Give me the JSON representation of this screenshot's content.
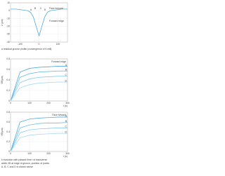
{
  "chart_data": [
    {
      "type": "line",
      "ylabel": "z (µm)",
      "x": [
        -150,
        -120,
        -90,
        -60,
        -45,
        -30,
        -15,
        0,
        15,
        30,
        45,
        60,
        90,
        120,
        150
      ],
      "values": [
        2,
        2,
        1,
        0,
        -2,
        -8,
        -20,
        -32,
        -20,
        -8,
        -2,
        0,
        1,
        2,
        2
      ],
      "color": "#3a9fd6",
      "xlim": [
        -150,
        150
      ],
      "xticks": [
        -100,
        0,
        100
      ],
      "ylim": [
        -40,
        10
      ],
      "yticks": [
        -40,
        -30,
        -20,
        -10,
        0,
        10
      ],
      "grid": true,
      "annotations": [
        {
          "text": "Face forward"
        },
        {
          "text": "Forward edge"
        },
        {
          "text": "A"
        },
        {
          "text": "B"
        },
        {
          "text": "C"
        },
        {
          "text": "D"
        }
      ],
      "caption": [
        "a  residual groove profile (convergence of 5 mill)"
      ]
    },
    {
      "type": "line",
      "title": "Forward edge",
      "ylabel": "VB(µm)",
      "xlabel": "t (s)",
      "x": [
        0,
        50,
        100,
        150,
        200,
        250,
        300
      ],
      "series": [
        {
          "name": "A",
          "color": "#3a9fd6",
          "values": [
            0,
            0.55,
            0.62,
            0.64,
            0.65,
            0.66,
            0.66
          ]
        },
        {
          "name": "B",
          "color": "#5bb4e2",
          "values": [
            0,
            0.45,
            0.52,
            0.55,
            0.56,
            0.57,
            0.57
          ]
        },
        {
          "name": "C",
          "color": "#7cc5ea",
          "values": [
            0,
            0.35,
            0.42,
            0.45,
            0.46,
            0.47,
            0.47
          ]
        },
        {
          "name": "D",
          "color": "#9dd5f0",
          "values": [
            0,
            0.25,
            0.31,
            0.34,
            0.35,
            0.36,
            0.36
          ]
        }
      ],
      "xlim": [
        0,
        300
      ],
      "xticks": [
        0,
        100,
        200,
        300
      ],
      "ylim": [
        0,
        0.8
      ],
      "yticks": [
        0,
        0.2,
        0.4,
        0.6,
        0.8
      ],
      "grid": true
    },
    {
      "type": "line",
      "title": "Face forward",
      "ylabel": "VB(µm)",
      "xlabel": "t (s)",
      "x": [
        0,
        50,
        100,
        150,
        200,
        250,
        300
      ],
      "series": [
        {
          "name": "A",
          "color": "#3a9fd6",
          "values": [
            0,
            0.6,
            0.66,
            0.68,
            0.69,
            0.7,
            0.7
          ]
        },
        {
          "name": "B",
          "color": "#5bb4e2",
          "values": [
            0,
            0.48,
            0.54,
            0.57,
            0.58,
            0.58,
            0.59
          ]
        },
        {
          "name": "C",
          "color": "#7cc5ea",
          "values": [
            0,
            0.38,
            0.44,
            0.46,
            0.47,
            0.48,
            0.48
          ]
        },
        {
          "name": "D",
          "color": "#9dd5f0",
          "values": [
            0,
            0.28,
            0.33,
            0.35,
            0.36,
            0.37,
            0.37
          ]
        }
      ],
      "xlim": [
        0,
        300
      ],
      "xticks": [
        0,
        100,
        200,
        300
      ],
      "ylim": [
        0,
        0.8
      ],
      "yticks": [
        0,
        0.2,
        0.4,
        0.6,
        0.8
      ],
      "grid": true,
      "caption": [
        "b  evolution with passed time t of transverse",
        "width VB at edge of groove, position of points",
        "A, B, C and D is shown above"
      ]
    }
  ]
}
